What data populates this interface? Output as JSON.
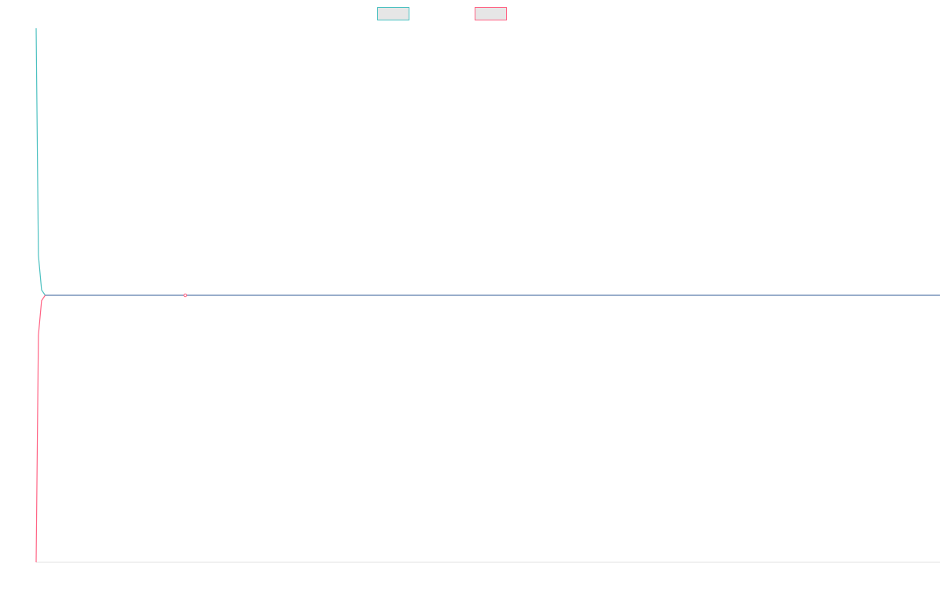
{
  "chart_data": {
    "type": "line",
    "title": "",
    "xlabel": "",
    "ylabel": "",
    "grid": false,
    "legend_position": "top-center",
    "xlim": [
      0,
      100
    ],
    "ylim": [
      -1,
      1
    ],
    "series": [
      {
        "color": "#4bc0c0",
        "fill": "#e6e6e6",
        "points": [
          [
            0,
            1
          ],
          [
            0.25,
            0.15
          ],
          [
            0.6,
            0.02
          ],
          [
            1,
            0
          ],
          [
            100,
            0
          ]
        ]
      },
      {
        "color": "#ff6384",
        "fill": "#e6e6e6",
        "points": [
          [
            0,
            -1
          ],
          [
            0.25,
            -0.15
          ],
          [
            0.6,
            -0.02
          ],
          [
            1,
            0
          ],
          [
            100,
            0
          ]
        ]
      }
    ],
    "overlap_color": "#6f9ac5",
    "marker": {
      "series": 1,
      "x": 16.5,
      "y": 0
    }
  }
}
